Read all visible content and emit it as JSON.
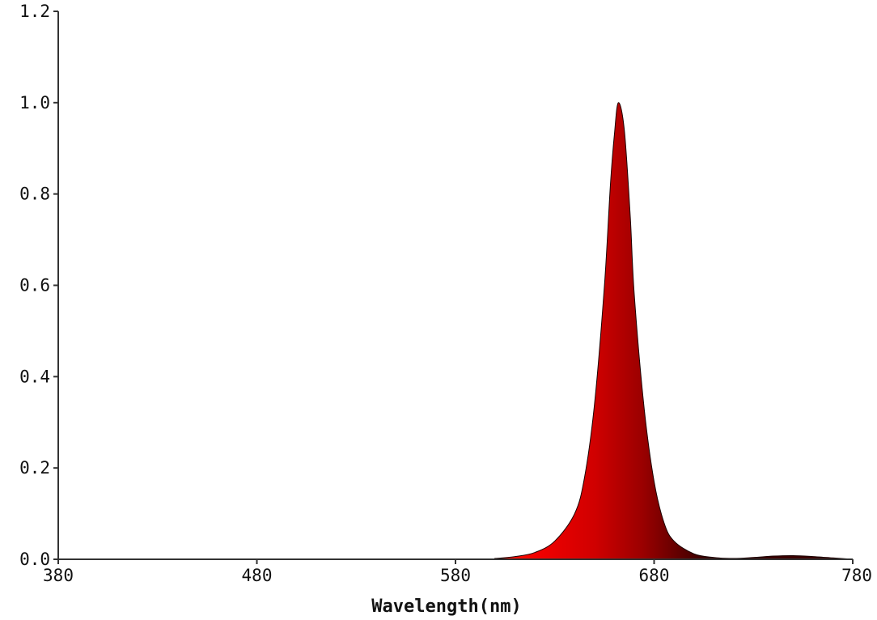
{
  "chart_data": {
    "type": "area",
    "xlabel": "Wavelength(nm)",
    "ylabel": "",
    "xlim": [
      380,
      780
    ],
    "ylim": [
      0,
      1.2
    ],
    "x_ticks": [
      380,
      480,
      580,
      680,
      780
    ],
    "y_ticks": [
      "0.0",
      "0.2",
      "0.4",
      "0.6",
      "0.8",
      "1.0",
      "1.2"
    ],
    "grid": false,
    "fill": "spectral gradient from red (~600 nm) to dark red (~710 nm)",
    "series": [
      {
        "x": [
          380,
          590,
          600,
          610,
          620,
          630,
          640,
          645,
          650,
          655,
          658,
          660,
          662,
          665,
          668,
          670,
          675,
          680,
          685,
          690,
          700,
          710,
          720,
          730,
          740,
          750,
          760,
          770,
          780
        ],
        "values": [
          0.0,
          0.0,
          0.002,
          0.006,
          0.015,
          0.04,
          0.1,
          0.18,
          0.34,
          0.6,
          0.82,
          0.93,
          1.0,
          0.94,
          0.75,
          0.58,
          0.33,
          0.17,
          0.08,
          0.04,
          0.012,
          0.004,
          0.002,
          0.004,
          0.007,
          0.008,
          0.006,
          0.003,
          0.0
        ]
      }
    ]
  }
}
